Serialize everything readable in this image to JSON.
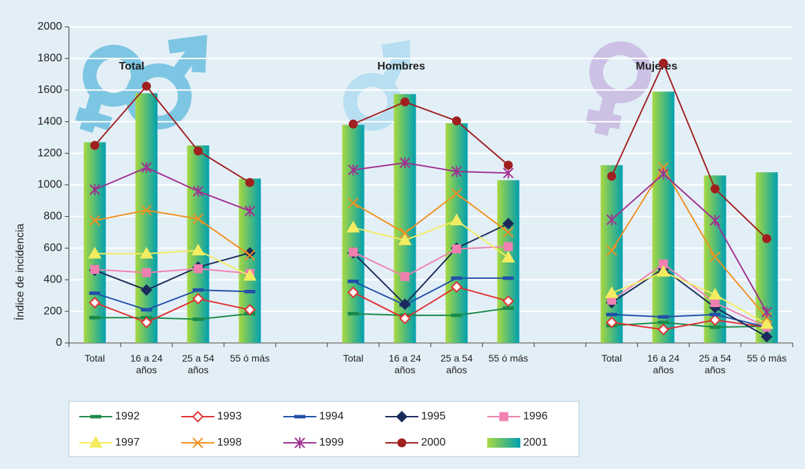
{
  "chart_data": {
    "type": "combo",
    "ylabel": "Índice de incidencia",
    "groups": [
      "Total",
      "Hombres",
      "Mujeres"
    ],
    "categories": [
      "Total",
      "16 a 24 años",
      "25 a 54 años",
      "55 ó más",
      null,
      "Total",
      "16 a 24 años",
      "25 a 54 años",
      "55 ó más",
      null,
      "Total",
      "16 a 24 años",
      "25 a 54 años",
      "55 ó más"
    ],
    "ylim": [
      0,
      2000
    ],
    "yticks": [
      0,
      200,
      400,
      600,
      800,
      1000,
      1200,
      1400,
      1600,
      1800,
      2000
    ],
    "grid": true,
    "series": [
      {
        "name": "1992",
        "type": "line",
        "marker": "dash",
        "color": "#1a8a4a",
        "values": [
          160,
          160,
          150,
          185,
          null,
          185,
          175,
          175,
          220,
          null,
          110,
          130,
          100,
          105
        ]
      },
      {
        "name": "1993",
        "type": "line",
        "marker": "open-diamond",
        "color": "#e03030",
        "values": [
          255,
          130,
          280,
          210,
          null,
          320,
          155,
          355,
          265,
          null,
          130,
          85,
          145,
          100
        ]
      },
      {
        "name": "1994",
        "type": "line",
        "marker": "dash",
        "color": "#2050a8",
        "values": [
          315,
          210,
          335,
          325,
          null,
          390,
          240,
          410,
          410,
          null,
          180,
          165,
          180,
          100
        ]
      },
      {
        "name": "1995",
        "type": "line",
        "marker": "diamond",
        "color": "#1a2a5a",
        "values": [
          460,
          335,
          480,
          570,
          null,
          570,
          245,
          600,
          755,
          null,
          255,
          470,
          225,
          40
        ]
      },
      {
        "name": "1996",
        "type": "line",
        "marker": "square",
        "color": "#f080b0",
        "values": [
          465,
          445,
          470,
          440,
          null,
          575,
          420,
          595,
          610,
          null,
          270,
          500,
          255,
          100
        ]
      },
      {
        "name": "1997",
        "type": "line",
        "marker": "triangle",
        "color": "#f4ec60",
        "values": [
          565,
          565,
          585,
          425,
          null,
          730,
          650,
          775,
          540,
          null,
          315,
          450,
          305,
          120
        ]
      },
      {
        "name": "1998",
        "type": "line",
        "marker": "x",
        "color": "#f09020",
        "values": [
          775,
          840,
          785,
          555,
          null,
          885,
          695,
          945,
          700,
          null,
          585,
          1110,
          545,
          160
        ]
      },
      {
        "name": "1999",
        "type": "line",
        "marker": "star",
        "color": "#a03090",
        "values": [
          970,
          1110,
          960,
          835,
          null,
          1095,
          1140,
          1085,
          1075,
          null,
          780,
          1070,
          775,
          195
        ]
      },
      {
        "name": "2000",
        "type": "line",
        "marker": "circle",
        "color": "#a02020",
        "values": [
          1250,
          1625,
          1215,
          1015,
          null,
          1385,
          1525,
          1405,
          1125,
          null,
          1055,
          1770,
          975,
          660
        ]
      },
      {
        "name": "2001",
        "type": "bar",
        "color": "#a8d840",
        "color2": "#00a0b0",
        "values": [
          1270,
          1580,
          1250,
          1040,
          null,
          1380,
          1575,
          1390,
          1030,
          null,
          1125,
          1590,
          1060,
          1080
        ]
      }
    ]
  }
}
